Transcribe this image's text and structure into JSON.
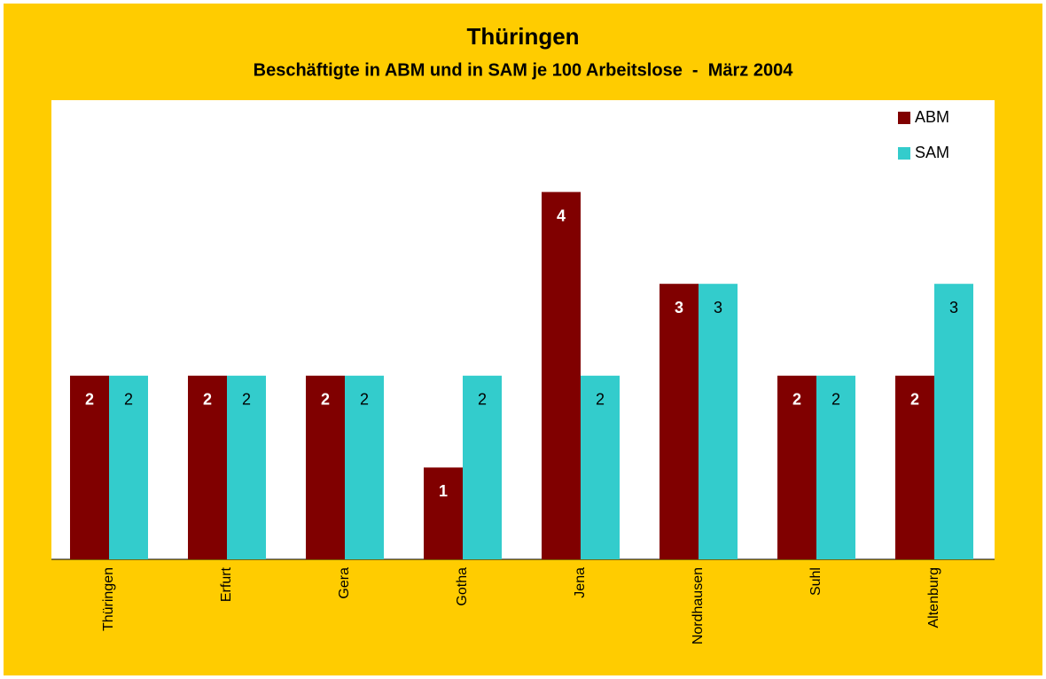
{
  "chart_data": {
    "type": "bar",
    "title": "Thüringen",
    "subtitle": "Beschäftigte in ABM und in SAM je 100 Arbeitslose  -  März 2004",
    "categories": [
      "Thüringen",
      "Erfurt",
      "Gera",
      "Gotha",
      "Jena",
      "Nordhausen",
      "Suhl",
      "Altenburg"
    ],
    "series": [
      {
        "name": "ABM",
        "color": "#800000",
        "values": [
          2,
          2,
          2,
          1,
          4,
          3,
          2,
          2
        ]
      },
      {
        "name": "SAM",
        "color": "#33cccc",
        "values": [
          2,
          2,
          2,
          2,
          2,
          3,
          2,
          3
        ]
      }
    ],
    "ylim": [
      0,
      5
    ],
    "legend": "top-right"
  }
}
